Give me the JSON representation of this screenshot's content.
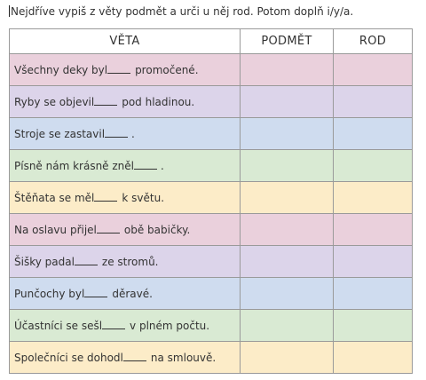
{
  "instruction": "Nejdříve vypiš z věty podmět a urči u něj rod. Potom doplň i/y/a.",
  "table": {
    "headers": [
      "VĚTA",
      "PODMĚT",
      "ROD"
    ],
    "rows": [
      {
        "before": "Všechny deky byl",
        "after": "promočené.",
        "color": "#ead0dc"
      },
      {
        "before": "Ryby se objevil",
        "after": "pod hladinou.",
        "color": "#dcd4ea"
      },
      {
        "before": "Stroje se zastavil",
        "after": ".",
        "color": "#cfdcef"
      },
      {
        "before": "Písně nám krásně zněl",
        "after": ".",
        "color": "#d9ead3"
      },
      {
        "before": "Štěňata se měl",
        "after": "k světu.",
        "color": "#fcecc8"
      },
      {
        "before": "Na oslavu přijel",
        "after": "obě babičky.",
        "color": "#ead0dc"
      },
      {
        "before": "Šišky padal",
        "after": "ze stromů.",
        "color": "#dcd4ea"
      },
      {
        "before": "Punčochy byl",
        "after": "děravé.",
        "color": "#cfdcef"
      },
      {
        "before": "Účastníci se sešl",
        "after": "v plném počtu.",
        "color": "#d9ead3"
      },
      {
        "before": "Společníci se dohodl",
        "after": "na smlouvě.",
        "color": "#fcecc8"
      }
    ]
  }
}
